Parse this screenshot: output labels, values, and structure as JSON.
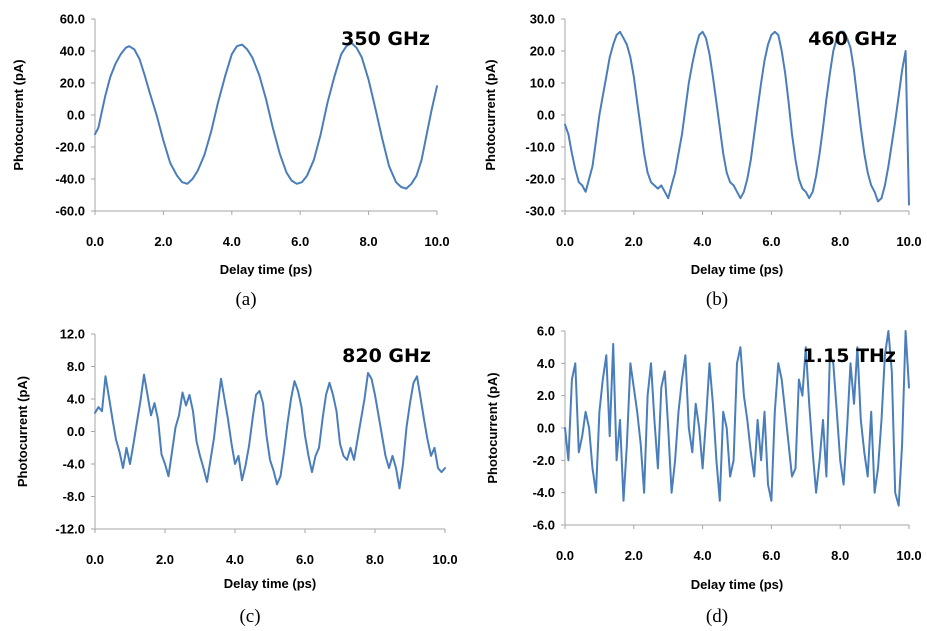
{
  "line_color": "#4a7ebb",
  "chart_data": [
    {
      "type": "line",
      "caption": "(a)",
      "annotation": "350 GHz",
      "title": "",
      "xlabel": "Delay time (ps)",
      "ylabel": "Photocurrent (pA)",
      "xlim": [
        0,
        10
      ],
      "ylim": [
        -60,
        60
      ],
      "x_ticks": [
        "0.0",
        "2.0",
        "4.0",
        "6.0",
        "8.0",
        "10.0"
      ],
      "y_ticks": [
        "60.0",
        "40.0",
        "20.0",
        "0.0",
        "-20.0",
        "-40.0",
        "-60.0"
      ],
      "grid": false,
      "series": [
        {
          "x": [
            0.0,
            0.1,
            0.2,
            0.3,
            0.45,
            0.6,
            0.75,
            0.9,
            1.0,
            1.15,
            1.3,
            1.45,
            1.6,
            1.8,
            2.0,
            2.2,
            2.4,
            2.55,
            2.7,
            2.85,
            3.0,
            3.2,
            3.4,
            3.6,
            3.8,
            4.0,
            4.15,
            4.3,
            4.45,
            4.6,
            4.8,
            5.0,
            5.2,
            5.4,
            5.6,
            5.75,
            5.9,
            6.05,
            6.2,
            6.4,
            6.6,
            6.8,
            7.0,
            7.2,
            7.35,
            7.5,
            7.65,
            7.8,
            8.0,
            8.2,
            8.4,
            8.6,
            8.8,
            8.95,
            9.1,
            9.25,
            9.4,
            9.55,
            9.7,
            9.85,
            10.0
          ],
          "y": [
            -12,
            -8,
            2,
            12,
            24,
            32,
            38,
            42,
            43,
            41,
            35,
            25,
            14,
            0,
            -16,
            -30,
            -38,
            -42,
            -43,
            -40,
            -35,
            -25,
            -10,
            8,
            24,
            38,
            43,
            44,
            41,
            36,
            25,
            10,
            -8,
            -24,
            -36,
            -41,
            -43,
            -42,
            -38,
            -28,
            -12,
            8,
            24,
            38,
            43,
            45,
            42,
            36,
            22,
            4,
            -15,
            -32,
            -42,
            -45,
            -46,
            -43,
            -38,
            -28,
            -12,
            4,
            18
          ]
        }
      ]
    },
    {
      "type": "line",
      "caption": "(b)",
      "annotation": "460 GHz",
      "title": "",
      "xlabel": "Delay time (ps)",
      "ylabel": "Photocurrent (pA)",
      "xlim": [
        0,
        10
      ],
      "ylim": [
        -30,
        30
      ],
      "x_ticks": [
        "0.0",
        "2.0",
        "4.0",
        "6.0",
        "8.0",
        "10.0"
      ],
      "y_ticks": [
        "30.0",
        "20.0",
        "10.0",
        "0.0",
        "-10.0",
        "-20.0",
        "-30.0"
      ],
      "grid": false,
      "series": [
        {
          "x": [
            0.0,
            0.1,
            0.2,
            0.3,
            0.4,
            0.5,
            0.6,
            0.7,
            0.8,
            0.9,
            1.0,
            1.1,
            1.2,
            1.3,
            1.4,
            1.5,
            1.6,
            1.7,
            1.8,
            1.9,
            2.0,
            2.1,
            2.2,
            2.3,
            2.4,
            2.5,
            2.6,
            2.7,
            2.8,
            2.9,
            3.0,
            3.1,
            3.2,
            3.3,
            3.4,
            3.5,
            3.6,
            3.7,
            3.8,
            3.9,
            4.0,
            4.1,
            4.2,
            4.3,
            4.4,
            4.5,
            4.6,
            4.7,
            4.8,
            4.9,
            5.0,
            5.1,
            5.2,
            5.3,
            5.4,
            5.5,
            5.6,
            5.7,
            5.8,
            5.9,
            6.0,
            6.1,
            6.2,
            6.3,
            6.4,
            6.5,
            6.6,
            6.7,
            6.8,
            6.9,
            7.0,
            7.1,
            7.2,
            7.3,
            7.4,
            7.5,
            7.6,
            7.7,
            7.8,
            7.9,
            8.0,
            8.1,
            8.2,
            8.3,
            8.4,
            8.5,
            8.6,
            8.7,
            8.8,
            8.9,
            9.0,
            9.1,
            9.2,
            9.3,
            9.4,
            9.5,
            9.6,
            9.7,
            9.8,
            9.9,
            10.0
          ],
          "y": [
            -3,
            -6,
            -12,
            -17,
            -21,
            -22,
            -24,
            -20,
            -16,
            -8,
            0,
            6,
            12,
            18,
            22,
            25,
            26,
            24,
            22,
            18,
            12,
            4,
            -4,
            -12,
            -18,
            -21,
            -22,
            -23,
            -22,
            -24,
            -26,
            -22,
            -18,
            -12,
            -6,
            2,
            10,
            16,
            21,
            25,
            26,
            24,
            19,
            12,
            4,
            -4,
            -12,
            -18,
            -21,
            -22,
            -24,
            -26,
            -24,
            -20,
            -14,
            -6,
            2,
            10,
            17,
            22,
            25,
            26,
            25,
            20,
            13,
            4,
            -6,
            -14,
            -20,
            -23,
            -24,
            -26,
            -24,
            -19,
            -12,
            -4,
            5,
            13,
            20,
            24,
            26,
            26,
            24,
            21,
            14,
            5,
            -4,
            -12,
            -18,
            -22,
            -24,
            -27,
            -26,
            -22,
            -16,
            -9,
            -2,
            6,
            14,
            20,
            -28
          ]
        }
      ]
    },
    {
      "type": "line",
      "caption": "(c)",
      "annotation": "820 GHz",
      "title": "",
      "xlabel": "Delay time (ps)",
      "ylabel": "Photocurrent (pA)",
      "xlim": [
        0,
        10
      ],
      "ylim": [
        -12,
        12
      ],
      "x_ticks": [
        "0.0",
        "2.0",
        "4.0",
        "6.0",
        "8.0",
        "10.0"
      ],
      "y_ticks": [
        "12.0",
        "8.0",
        "4.0",
        "0.0",
        "-4.0",
        "-8.0",
        "-12.0"
      ],
      "grid": false,
      "series": [
        {
          "x": [
            0.0,
            0.1,
            0.2,
            0.3,
            0.4,
            0.5,
            0.6,
            0.7,
            0.8,
            0.9,
            1.0,
            1.1,
            1.2,
            1.3,
            1.4,
            1.5,
            1.6,
            1.7,
            1.8,
            1.9,
            2.0,
            2.1,
            2.2,
            2.3,
            2.4,
            2.5,
            2.6,
            2.7,
            2.8,
            2.9,
            3.0,
            3.1,
            3.2,
            3.3,
            3.4,
            3.5,
            3.6,
            3.7,
            3.8,
            3.9,
            4.0,
            4.1,
            4.2,
            4.3,
            4.4,
            4.5,
            4.6,
            4.7,
            4.8,
            4.9,
            5.0,
            5.1,
            5.2,
            5.3,
            5.4,
            5.5,
            5.6,
            5.7,
            5.8,
            5.9,
            6.0,
            6.1,
            6.2,
            6.3,
            6.4,
            6.5,
            6.6,
            6.7,
            6.8,
            6.9,
            7.0,
            7.1,
            7.2,
            7.3,
            7.4,
            7.5,
            7.6,
            7.7,
            7.8,
            7.9,
            8.0,
            8.1,
            8.2,
            8.3,
            8.4,
            8.5,
            8.6,
            8.7,
            8.8,
            8.9,
            9.0,
            9.1,
            9.2,
            9.3,
            9.4,
            9.5,
            9.6,
            9.7,
            9.8,
            9.9,
            10.0
          ],
          "y": [
            2.3,
            3.0,
            2.5,
            6.8,
            4.2,
            1.5,
            -1.0,
            -2.5,
            -4.5,
            -2.0,
            -4.0,
            -1.5,
            1.2,
            3.8,
            7.0,
            4.5,
            2.0,
            3.5,
            1.5,
            -2.8,
            -4.0,
            -5.5,
            -2.5,
            0.5,
            2.0,
            4.8,
            3.2,
            4.5,
            2.5,
            -1.2,
            -3.0,
            -4.5,
            -6.2,
            -3.5,
            -0.8,
            3.0,
            6.5,
            4.0,
            1.5,
            -1.5,
            -4.0,
            -3.0,
            -6.0,
            -4.2,
            -1.8,
            1.5,
            4.5,
            5.0,
            3.5,
            -0.5,
            -3.5,
            -4.8,
            -6.5,
            -5.5,
            -2.5,
            1.0,
            4.0,
            6.2,
            5.0,
            3.0,
            -0.5,
            -3.0,
            -5.0,
            -3.0,
            -2.0,
            1.5,
            4.5,
            6.0,
            4.5,
            2.5,
            -1.5,
            -3.0,
            -3.5,
            -2.0,
            -3.5,
            -1.0,
            1.5,
            4.0,
            7.2,
            6.5,
            4.5,
            2.0,
            -0.5,
            -3.0,
            -4.5,
            -3.0,
            -4.5,
            -7.0,
            -4.0,
            0.5,
            3.5,
            6.0,
            6.8,
            4.2,
            1.5,
            -1.0,
            -3.0,
            -2.0,
            -4.5,
            -5.0,
            -4.5
          ]
        }
      ]
    },
    {
      "type": "line",
      "caption": "(d)",
      "annotation": "1.15 THz",
      "title": "",
      "xlabel": "Delay time (ps)",
      "ylabel": "Photocurrent (pA)",
      "xlim": [
        0,
        10
      ],
      "ylim": [
        -6,
        6
      ],
      "x_ticks": [
        "0.0",
        "2.0",
        "4.0",
        "6.0",
        "8.0",
        "10.0"
      ],
      "y_ticks": [
        "6.0",
        "4.0",
        "2.0",
        "0.0",
        "-2.0",
        "-4.0",
        "-6.0"
      ],
      "grid": false,
      "series": [
        {
          "x": [
            0.0,
            0.1,
            0.2,
            0.3,
            0.4,
            0.5,
            0.6,
            0.7,
            0.8,
            0.9,
            1.0,
            1.1,
            1.2,
            1.3,
            1.4,
            1.5,
            1.6,
            1.7,
            1.8,
            1.9,
            2.0,
            2.1,
            2.2,
            2.3,
            2.4,
            2.5,
            2.6,
            2.7,
            2.8,
            2.9,
            3.0,
            3.1,
            3.2,
            3.3,
            3.4,
            3.5,
            3.6,
            3.7,
            3.8,
            3.9,
            4.0,
            4.1,
            4.2,
            4.3,
            4.4,
            4.5,
            4.6,
            4.7,
            4.8,
            4.9,
            5.0,
            5.1,
            5.2,
            5.3,
            5.4,
            5.5,
            5.6,
            5.7,
            5.8,
            5.9,
            6.0,
            6.1,
            6.2,
            6.3,
            6.4,
            6.5,
            6.6,
            6.7,
            6.8,
            6.9,
            7.0,
            7.1,
            7.2,
            7.3,
            7.4,
            7.5,
            7.6,
            7.7,
            7.8,
            7.9,
            8.0,
            8.1,
            8.2,
            8.3,
            8.4,
            8.5,
            8.6,
            8.7,
            8.8,
            8.9,
            9.0,
            9.1,
            9.2,
            9.3,
            9.4,
            9.5,
            9.6,
            9.7,
            9.8,
            9.9,
            10.0
          ],
          "y": [
            0.0,
            -2.0,
            3.0,
            4.0,
            -1.5,
            -0.5,
            1.0,
            0.0,
            -2.5,
            -4.0,
            1.0,
            3.0,
            4.5,
            -0.5,
            5.2,
            -2.0,
            0.5,
            -4.5,
            -1.0,
            4.0,
            2.5,
            1.0,
            -1.0,
            -4.0,
            2.0,
            4.0,
            0.5,
            -2.5,
            2.5,
            3.5,
            0.0,
            -4.0,
            -2.0,
            1.0,
            3.0,
            4.5,
            0.0,
            -1.5,
            1.5,
            0.0,
            -2.5,
            0.5,
            4.0,
            1.5,
            -2.0,
            -4.5,
            1.0,
            0.0,
            -3.0,
            -2.0,
            4.0,
            5.0,
            2.0,
            0.5,
            -1.5,
            -3.0,
            0.5,
            -2.0,
            1.0,
            -3.5,
            -4.5,
            1.0,
            4.0,
            3.0,
            1.0,
            -1.0,
            -3.0,
            -2.5,
            3.0,
            2.0,
            5.0,
            1.5,
            -1.5,
            -4.0,
            -2.0,
            0.5,
            -3.0,
            4.5,
            4.0,
            1.0,
            -2.0,
            -3.5,
            0.0,
            4.0,
            1.5,
            5.0,
            0.5,
            -1.5,
            -3.0,
            1.0,
            -4.0,
            -2.5,
            0.5,
            4.5,
            6.0,
            3.5,
            -4.0,
            -4.8,
            -1.0,
            6.0,
            2.5
          ]
        }
      ]
    }
  ]
}
